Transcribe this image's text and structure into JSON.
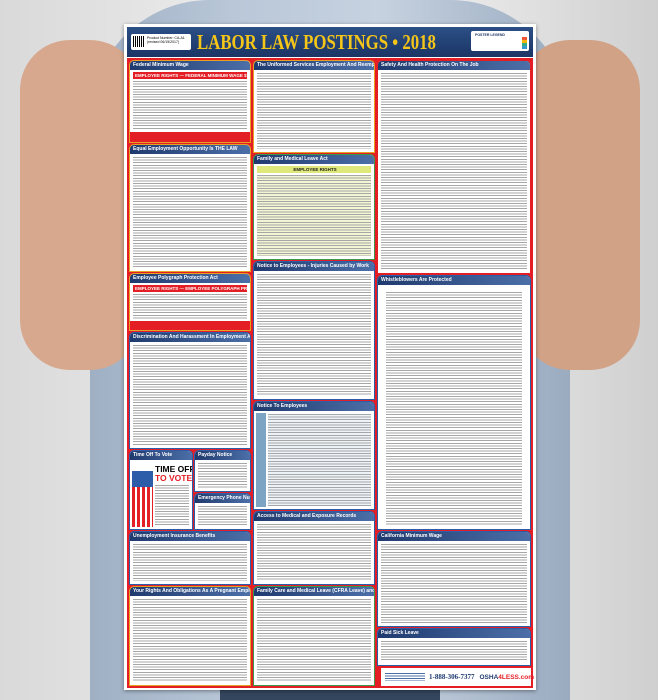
{
  "poster": {
    "title": "LABOR LAW POSTINGS • 2018",
    "product_number": "Product Number: CA-A1 (revised 06/15/2017)",
    "legend_title": "POSTER LEGEND",
    "sections": {
      "federal_min_wage": "Federal Minimum Wage",
      "employee_rights_banner": "EMPLOYEE RIGHTS — FEDERAL MINIMUM WAGE $7.25 PER HOUR",
      "eeo": "Equal Employment Opportunity Is THE LAW",
      "polygraph": "Employee Polygraph Protection Act",
      "polygraph_banner": "EMPLOYEE RIGHTS — EMPLOYEE POLYGRAPH PROTECTION ACT",
      "discrimination": "Discrimination And Harassment In Employment Are Prohibited By Law",
      "time_off_vote": "Time Off To Vote",
      "vote_line1": "TIME OFF",
      "vote_line2": "TO VOTE",
      "payday": "Payday Notice",
      "emergency": "Emergency Phone Numbers",
      "unemployment": "Unemployment Insurance Benefits",
      "pregnant": "Your Rights And Obligations As A Pregnant Employee",
      "uniformed": "The Uniformed Services Employment And Reemployment Rights Act",
      "fmla": "Family and Medical Leave Act",
      "fmla_banner": "EMPLOYEE RIGHTS",
      "injuries": "Notice to Employees - Injuries Caused by Work",
      "notice": "Notice To Employees",
      "medical": "Access to Medical and Exposure Records",
      "cfra": "Family Care and Medical Leave (CFRA Leave) and Pregnancy Disability Leave",
      "safety": "Safety And Health Protection On The Job",
      "whistle": "Whistleblowers Are Protected",
      "ca_min_wage": "California Minimum Wage",
      "sick": "Paid Sick Leave"
    },
    "footer": {
      "phone": "1-888-306-7377",
      "site_a": "OSHA",
      "site_b": "4LESS.com"
    }
  },
  "colors": {
    "header": "#1b3565",
    "title": "#f5c518",
    "frame": "#e31e24"
  }
}
